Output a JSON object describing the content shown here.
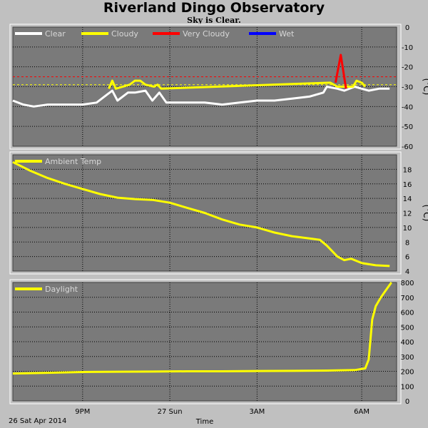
{
  "header": {
    "title": "Riverland Dingo Observatory",
    "subtitle": "Sky is Clear."
  },
  "footer": {
    "date_label": "26 Sat Apr 2014",
    "xlabel": "Time"
  },
  "colors": {
    "background": "#c0c0c0",
    "plot_bg": "#7a7a7a",
    "grid": "#000000",
    "clear": "#ffffff",
    "cloudy": "#ffff00",
    "very_cloudy": "#ff0000",
    "wet": "#0000ff"
  },
  "chart_data": [
    {
      "type": "line",
      "title": "",
      "ylabel": "(°C)",
      "ylim": [
        -60,
        0
      ],
      "yticks": [
        0,
        -10,
        -20,
        -30,
        -40,
        -50,
        -60
      ],
      "xlim": [
        0,
        11
      ],
      "xticks": [
        {
          "label": "9PM",
          "x": 2
        },
        {
          "label": "27 Sun",
          "x": 4.5
        },
        {
          "label": "3AM",
          "x": 7.0
        },
        {
          "label": "6AM",
          "x": 10.0
        }
      ],
      "legend": [
        {
          "name": "Clear",
          "color": "#ffffff"
        },
        {
          "name": "Cloudy",
          "color": "#ffff00"
        },
        {
          "name": "Very Cloudy",
          "color": "#ff0000"
        },
        {
          "name": "Wet",
          "color": "#0000ff"
        }
      ],
      "thresholds": [
        {
          "value": -25,
          "color": "#ff0000"
        },
        {
          "value": -29,
          "color": "#ffff00"
        }
      ],
      "series": [
        {
          "name": "Clear",
          "points": [
            [
              0,
              -37
            ],
            [
              0.3,
              -39
            ],
            [
              0.6,
              -40
            ],
            [
              1.0,
              -39
            ],
            [
              1.5,
              -39
            ],
            [
              2.0,
              -39
            ],
            [
              2.4,
              -38
            ],
            [
              2.7,
              -34
            ],
            [
              2.85,
              -32
            ],
            [
              3.0,
              -37
            ],
            [
              3.3,
              -33
            ],
            [
              3.5,
              -33
            ],
            [
              3.8,
              -32
            ],
            [
              4.0,
              -37
            ],
            [
              4.2,
              -33
            ],
            [
              4.4,
              -38
            ],
            [
              5.0,
              -38
            ],
            [
              5.5,
              -38
            ],
            [
              6.0,
              -39
            ],
            [
              6.5,
              -38
            ],
            [
              7.0,
              -37
            ],
            [
              7.5,
              -37
            ],
            [
              8.0,
              -36
            ],
            [
              8.5,
              -35
            ],
            [
              8.9,
              -33
            ],
            [
              9.0,
              -30
            ],
            [
              9.3,
              -31
            ],
            [
              9.5,
              -32
            ],
            [
              9.8,
              -30
            ],
            [
              10.0,
              -31
            ],
            [
              10.2,
              -32
            ],
            [
              10.5,
              -31
            ],
            [
              10.8,
              -31
            ]
          ]
        },
        {
          "name": "Cloudy",
          "points": [
            [
              2.75,
              -31
            ],
            [
              2.85,
              -27
            ],
            [
              2.95,
              -31
            ],
            [
              3.35,
              -29
            ],
            [
              3.5,
              -27
            ],
            [
              3.65,
              -27
            ],
            [
              3.8,
              -29
            ],
            [
              4.05,
              -30
            ],
            [
              4.15,
              -29
            ],
            [
              4.25,
              -31
            ],
            [
              9.1,
              -28
            ],
            [
              9.3,
              -30
            ],
            [
              9.75,
              -30
            ],
            [
              9.85,
              -27
            ],
            [
              10.0,
              -28
            ],
            [
              10.1,
              -30
            ]
          ]
        },
        {
          "name": "Very Cloudy",
          "points": [
            [
              9.25,
              -28
            ],
            [
              9.4,
              -14
            ],
            [
              9.55,
              -31
            ]
          ]
        },
        {
          "name": "Wet",
          "points": []
        }
      ]
    },
    {
      "type": "line",
      "title": "",
      "ylabel": "(°C)",
      "ylim": [
        4,
        20
      ],
      "yticks": [
        4,
        6,
        8,
        10,
        12,
        14,
        16,
        18
      ],
      "xlim": [
        0,
        11
      ],
      "legend": [
        {
          "name": "Ambient Temp",
          "color": "#ffff00"
        }
      ],
      "series": [
        {
          "name": "Ambient Temp",
          "points": [
            [
              0,
              19.0
            ],
            [
              0.5,
              17.8
            ],
            [
              1.0,
              16.8
            ],
            [
              1.5,
              16.0
            ],
            [
              2.0,
              15.3
            ],
            [
              2.5,
              14.6
            ],
            [
              3.0,
              14.1
            ],
            [
              3.5,
              13.9
            ],
            [
              4.0,
              13.8
            ],
            [
              4.5,
              13.4
            ],
            [
              5.0,
              12.7
            ],
            [
              5.5,
              12.0
            ],
            [
              6.0,
              11.1
            ],
            [
              6.5,
              10.4
            ],
            [
              7.0,
              10.0
            ],
            [
              7.5,
              9.3
            ],
            [
              8.0,
              8.8
            ],
            [
              8.5,
              8.5
            ],
            [
              8.8,
              8.3
            ],
            [
              9.0,
              7.5
            ],
            [
              9.3,
              6.0
            ],
            [
              9.5,
              5.5
            ],
            [
              9.7,
              5.7
            ],
            [
              10.0,
              5.1
            ],
            [
              10.4,
              4.8
            ],
            [
              10.8,
              4.7
            ]
          ]
        }
      ]
    },
    {
      "type": "line",
      "title": "",
      "ylim": [
        0,
        800
      ],
      "yticks": [
        0,
        100,
        200,
        300,
        400,
        500,
        600,
        700,
        800
      ],
      "xlim": [
        0,
        11
      ],
      "legend": [
        {
          "name": "Daylight",
          "color": "#ffff00"
        }
      ],
      "series": [
        {
          "name": "Daylight",
          "points": [
            [
              0,
              185
            ],
            [
              1.0,
              190
            ],
            [
              2.0,
              195
            ],
            [
              3.0,
              197
            ],
            [
              4.0,
              198
            ],
            [
              5.0,
              200
            ],
            [
              6.0,
              200
            ],
            [
              7.0,
              202
            ],
            [
              8.0,
              203
            ],
            [
              9.0,
              205
            ],
            [
              9.8,
              208
            ],
            [
              10.1,
              220
            ],
            [
              10.2,
              280
            ],
            [
              10.3,
              550
            ],
            [
              10.4,
              640
            ],
            [
              10.55,
              700
            ],
            [
              10.7,
              750
            ],
            [
              10.85,
              800
            ]
          ]
        }
      ]
    }
  ]
}
